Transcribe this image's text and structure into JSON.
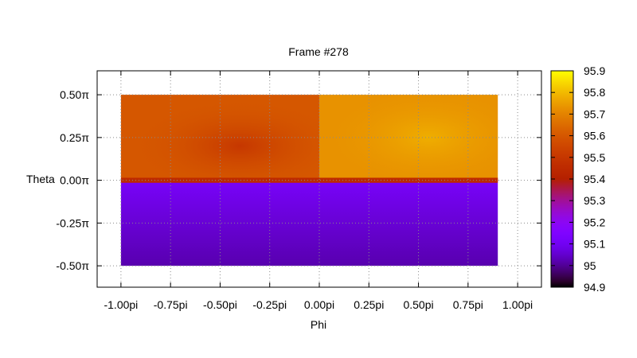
{
  "chart_data": {
    "type": "heatmap",
    "title": "Frame #278",
    "xlabel": "Phi",
    "ylabel": "Theta",
    "xlim": [
      -1.12,
      1.12
    ],
    "ylim": [
      -0.625,
      0.64
    ],
    "x_range": [
      -1.0,
      0.9
    ],
    "y_range": [
      -0.5,
      0.5
    ],
    "x_ticks": [
      -1.0,
      -0.75,
      -0.5,
      -0.25,
      0.0,
      0.25,
      0.5,
      0.75,
      1.0
    ],
    "x_tick_labels": [
      "-1.00pi",
      "-0.75pi",
      "-0.50pi",
      "-0.25pi",
      "0.00pi",
      "0.25pi",
      "0.50pi",
      "0.75pi",
      "1.00pi"
    ],
    "y_ticks": [
      0.5,
      0.25,
      0.0,
      -0.25,
      -0.5
    ],
    "y_tick_labels": [
      "0.50π",
      "0.25π",
      "0.00π",
      "-0.25π",
      "-0.50π"
    ],
    "grid": true,
    "colorbar": {
      "min": 94.9,
      "max": 95.9,
      "ticks": [
        95.9,
        95.8,
        95.7,
        95.6,
        95.5,
        95.4,
        95.3,
        95.2,
        95.1,
        95,
        94.9
      ],
      "tick_labels": [
        "95.9",
        "95.8",
        "95.7",
        "95.6",
        "95.5",
        "95.4",
        "95.3",
        "95.2",
        "95.1",
        "95",
        "94.9"
      ]
    },
    "regions": [
      {
        "name": "upper-left",
        "x": [
          -1.0,
          0.0
        ],
        "y": [
          0.0,
          0.5
        ],
        "value": 95.6,
        "center_value": 95.5,
        "center": [
          -0.4,
          0.2
        ]
      },
      {
        "name": "upper-right",
        "x": [
          0.0,
          0.9
        ],
        "y": [
          0.0,
          0.5
        ],
        "value": 95.73,
        "center_value": 95.78,
        "center": [
          0.55,
          0.25
        ]
      },
      {
        "name": "equator-band",
        "x": [
          -1.0,
          0.9
        ],
        "y": [
          -0.01,
          0.01
        ],
        "value": 95.45
      },
      {
        "name": "lower",
        "x": [
          -1.0,
          0.9
        ],
        "y": [
          -0.5,
          0.0
        ],
        "value_top": 95.12,
        "value_bottom": 95.02
      }
    ]
  }
}
